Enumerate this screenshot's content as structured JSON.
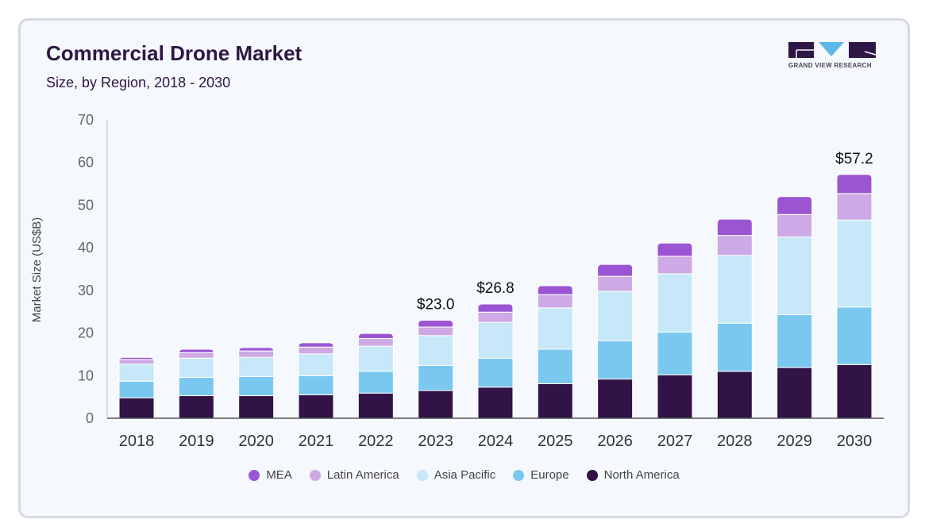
{
  "header": {
    "title": "Commercial Drone Market",
    "subtitle": "Size, by Region, 2018 - 2030"
  },
  "logo": {
    "text": "GRAND VIEW RESEARCH",
    "colors": {
      "dark": "#2e1745",
      "accent": "#5bb8e8"
    }
  },
  "chart_data": {
    "type": "bar",
    "stacked": true,
    "title": "Commercial Drone Market",
    "subtitle": "Size, by Region, 2018 - 2030",
    "xlabel": "",
    "ylabel": "Market Size (US$B)",
    "ylim": [
      0,
      70
    ],
    "yticks": [
      0,
      10,
      20,
      30,
      40,
      50,
      60,
      70
    ],
    "grid": false,
    "legend_position": "bottom",
    "categories": [
      "2018",
      "2019",
      "2020",
      "2021",
      "2022",
      "2023",
      "2024",
      "2025",
      "2026",
      "2027",
      "2028",
      "2029",
      "2030"
    ],
    "series": [
      {
        "name": "North America",
        "color": "#311347",
        "values": [
          4.8,
          5.3,
          5.3,
          5.5,
          5.9,
          6.5,
          7.3,
          8.1,
          9.2,
          10.2,
          11.0,
          11.9,
          12.6
        ]
      },
      {
        "name": "Europe",
        "color": "#7ac8ef",
        "values": [
          3.9,
          4.3,
          4.5,
          4.5,
          5.1,
          5.9,
          6.8,
          8.1,
          9.0,
          10.0,
          11.3,
          12.4,
          13.5
        ]
      },
      {
        "name": "Asia Pacific",
        "color": "#c6e8f8",
        "values": [
          4.0,
          4.5,
          4.5,
          5.1,
          5.9,
          7.0,
          8.4,
          9.7,
          11.6,
          13.7,
          15.9,
          18.2,
          20.4
        ]
      },
      {
        "name": "Latin America",
        "color": "#cdaae5",
        "values": [
          1.1,
          1.3,
          1.5,
          1.6,
          1.8,
          2.0,
          2.4,
          3.1,
          3.5,
          4.1,
          4.7,
          5.3,
          6.2
        ]
      },
      {
        "name": "MEA",
        "color": "#9b55d2",
        "values": [
          0.5,
          0.8,
          0.8,
          1.0,
          1.2,
          1.6,
          1.9,
          2.1,
          2.8,
          3.1,
          3.8,
          4.2,
          4.5
        ]
      }
    ],
    "legend_order": [
      "MEA",
      "Latin America",
      "Asia Pacific",
      "Europe",
      "North America"
    ],
    "annotations": [
      {
        "category": "2023",
        "text": "$23.0"
      },
      {
        "category": "2024",
        "text": "$26.8"
      },
      {
        "category": "2030",
        "text": "$57.2"
      }
    ]
  }
}
